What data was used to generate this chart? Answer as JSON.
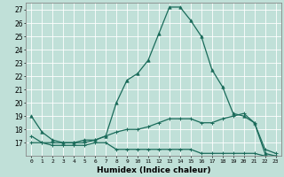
{
  "xlabel": "Humidex (Indice chaleur)",
  "ylabel": "",
  "bg_color": "#c0e0d8",
  "grid_color": "#ffffff",
  "line_color": "#1a6b5a",
  "xlim": [
    -0.5,
    23.5
  ],
  "ylim": [
    16,
    27.5
  ],
  "yticks": [
    17,
    18,
    19,
    20,
    21,
    22,
    23,
    24,
    25,
    26,
    27
  ],
  "xticks": [
    0,
    1,
    2,
    3,
    4,
    5,
    6,
    7,
    8,
    9,
    10,
    11,
    12,
    13,
    14,
    15,
    16,
    17,
    18,
    19,
    20,
    21,
    22,
    23
  ],
  "curve1_x": [
    0,
    1,
    2,
    3,
    4,
    5,
    6,
    7,
    8,
    9,
    10,
    11,
    12,
    13,
    14,
    15,
    16,
    17,
    18,
    19,
    20,
    21,
    22,
    23
  ],
  "curve1_y": [
    19.0,
    17.8,
    17.2,
    17.0,
    17.0,
    17.2,
    17.2,
    17.5,
    20.0,
    21.7,
    22.2,
    23.2,
    25.2,
    27.2,
    27.2,
    26.2,
    25.0,
    22.5,
    21.2,
    19.2,
    19.0,
    18.5,
    16.2,
    16.0
  ],
  "curve2_x": [
    0,
    1,
    2,
    3,
    4,
    5,
    6,
    7,
    8,
    9,
    10,
    11,
    12,
    13,
    14,
    15,
    16,
    17,
    18,
    19,
    20,
    21,
    22,
    23
  ],
  "curve2_y": [
    17.5,
    17.0,
    17.0,
    17.0,
    17.0,
    17.0,
    17.2,
    17.5,
    17.8,
    18.0,
    18.0,
    18.2,
    18.5,
    18.8,
    18.8,
    18.8,
    18.5,
    18.5,
    18.8,
    19.0,
    19.2,
    18.5,
    16.5,
    16.2
  ],
  "curve3_x": [
    0,
    1,
    2,
    3,
    4,
    5,
    6,
    7,
    8,
    9,
    10,
    11,
    12,
    13,
    14,
    15,
    16,
    17,
    18,
    19,
    20,
    21,
    22,
    23
  ],
  "curve3_y": [
    17.0,
    17.0,
    16.8,
    16.8,
    16.8,
    16.8,
    17.0,
    17.0,
    16.5,
    16.5,
    16.5,
    16.5,
    16.5,
    16.5,
    16.5,
    16.5,
    16.2,
    16.2,
    16.2,
    16.2,
    16.2,
    16.2,
    16.0,
    16.0
  ],
  "marker1": "^",
  "marker2": "+",
  "marker3": "+",
  "lw": 0.9,
  "ms1": 3,
  "ms2": 3
}
